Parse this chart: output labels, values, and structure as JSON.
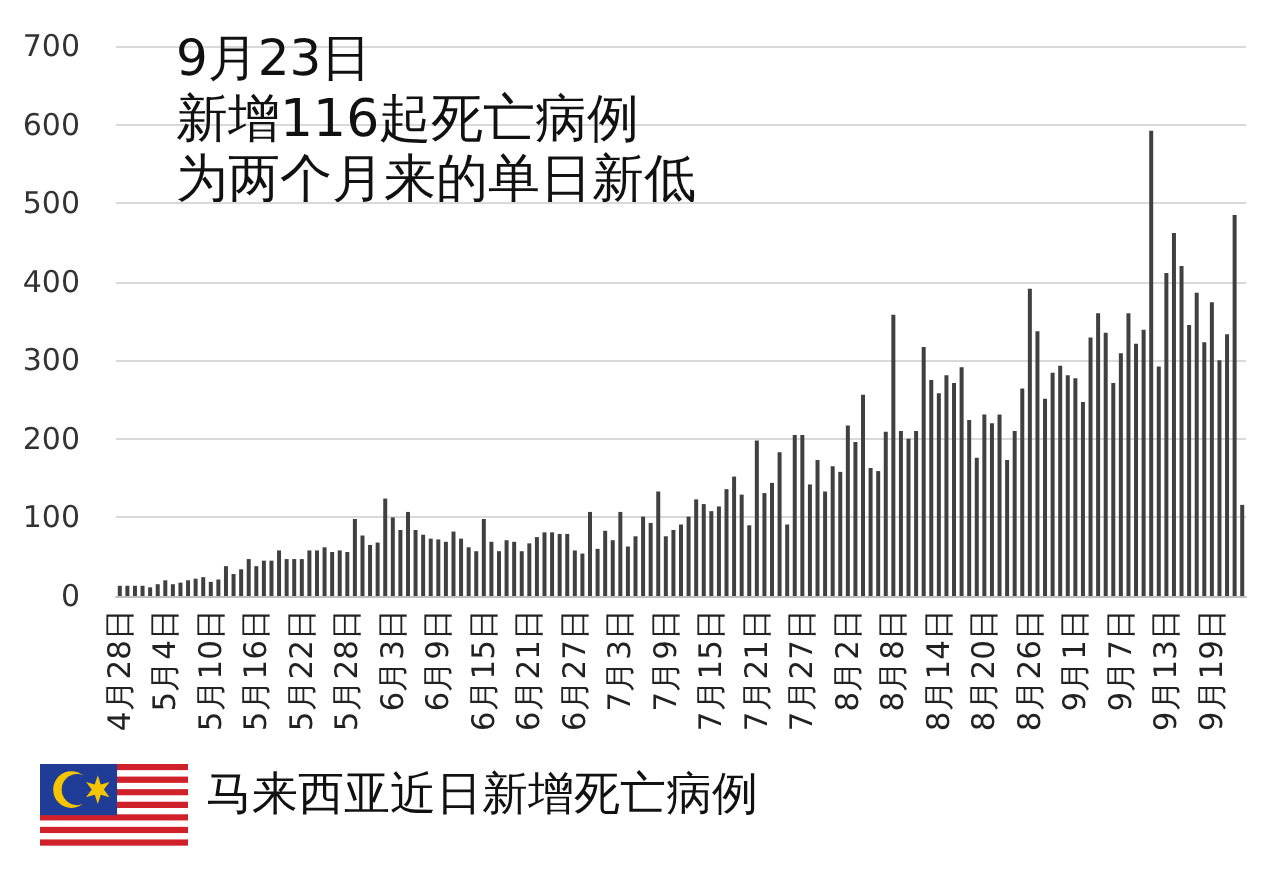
{
  "chart_data": {
    "type": "bar",
    "title": "9月23日",
    "subtitle": "新增116起死亡病例",
    "annotations": [
      "为两个月来的单日新低",
      "马来西亚近日新增死亡病例"
    ],
    "categories": [
      "4月28日",
      null,
      null,
      null,
      null,
      null,
      "5月4日",
      null,
      null,
      null,
      null,
      null,
      "5月10日",
      null,
      null,
      null,
      null,
      null,
      "5月16日",
      null,
      null,
      null,
      null,
      null,
      "5月22日",
      null,
      null,
      null,
      null,
      null,
      "5月28日",
      null,
      null,
      null,
      null,
      null,
      "6月3日",
      null,
      null,
      null,
      null,
      null,
      "6月9日",
      null,
      null,
      null,
      null,
      null,
      "6月15日",
      null,
      null,
      null,
      null,
      null,
      "6月21日",
      null,
      null,
      null,
      null,
      null,
      "6月27日",
      null,
      null,
      null,
      null,
      null,
      "7月3日",
      null,
      null,
      null,
      null,
      null,
      "7月9日",
      null,
      null,
      null,
      null,
      null,
      "7月15日",
      null,
      null,
      null,
      null,
      null,
      "7月21日",
      null,
      null,
      null,
      null,
      null,
      "7月27日",
      null,
      null,
      null,
      null,
      null,
      "8月2日",
      null,
      null,
      null,
      null,
      null,
      "8月8日",
      null,
      null,
      null,
      null,
      null,
      "8月14日",
      null,
      null,
      null,
      null,
      null,
      "8月20日",
      null,
      null,
      null,
      null,
      null,
      "8月26日",
      null,
      null,
      null,
      null,
      null,
      "9月1日",
      null,
      null,
      null,
      null,
      null,
      "9月7日",
      null,
      null,
      null,
      null,
      null,
      "9月13日",
      null,
      null,
      null,
      null,
      null,
      "9月19日",
      null,
      null,
      null,
      null
    ],
    "values": [
      13,
      13,
      13,
      13,
      11,
      15,
      20,
      15,
      17,
      20,
      22,
      24,
      18,
      21,
      38,
      28,
      34,
      47,
      38,
      45,
      45,
      58,
      47,
      47,
      47,
      58,
      58,
      62,
      56,
      58,
      56,
      98,
      77,
      65,
      68,
      124,
      100,
      84,
      107,
      84,
      78,
      73,
      72,
      69,
      82,
      73,
      62,
      57,
      98,
      69,
      57,
      71,
      69,
      57,
      67,
      75,
      81,
      81,
      79,
      79,
      58,
      54,
      107,
      60,
      83,
      71,
      107,
      63,
      76,
      101,
      93,
      133,
      76,
      84,
      91,
      101,
      123,
      117,
      108,
      114,
      136,
      152,
      129,
      90,
      198,
      131,
      144,
      183,
      91,
      205,
      205,
      142,
      173,
      133,
      165,
      158,
      217,
      196,
      256,
      163,
      159,
      209,
      358,
      210,
      200,
      210,
      317,
      275,
      258,
      281,
      271,
      291,
      224,
      176,
      231,
      220,
      231,
      173,
      210,
      264,
      391,
      337,
      251,
      284,
      293,
      281,
      277,
      247,
      329,
      360,
      335,
      271,
      309,
      360,
      321,
      339,
      592,
      292,
      411,
      462,
      420,
      345,
      386,
      323,
      374,
      300,
      333,
      485,
      116
    ],
    "color": "#404040",
    "ylim": [
      0,
      700
    ],
    "yticks": [
      0,
      100,
      200,
      300,
      400,
      500,
      600,
      700
    ],
    "grid": "y"
  }
}
